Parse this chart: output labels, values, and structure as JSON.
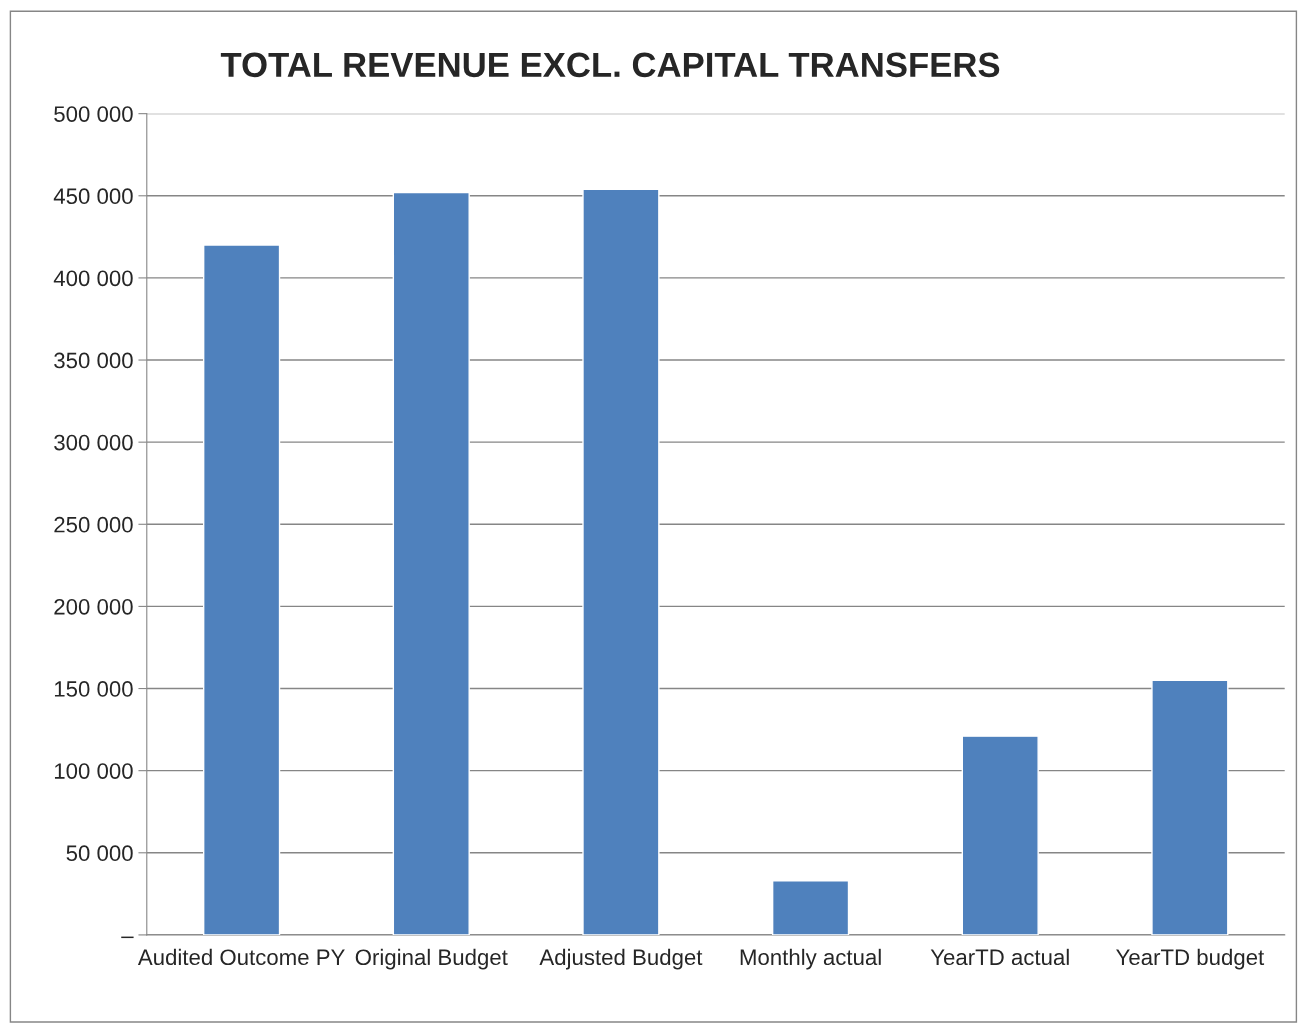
{
  "chart_data": {
    "type": "bar",
    "title": "TOTAL REVENUE EXCL. CAPITAL TRANSFERS",
    "categories": [
      "Audited Outcome PY",
      "Original Budget",
      "Adjusted Budget",
      "Monthly actual",
      "YearTD actual",
      "YearTD budget"
    ],
    "values": [
      420000,
      452000,
      454000,
      33000,
      121000,
      155000
    ],
    "color": "#4f81bd",
    "ylim": [
      0,
      500000
    ],
    "yticks": [
      {
        "value": 0,
        "label": "–"
      },
      {
        "value": 50000,
        "label": "50 000"
      },
      {
        "value": 100000,
        "label": "100 000"
      },
      {
        "value": 150000,
        "label": "150 000"
      },
      {
        "value": 200000,
        "label": "200 000"
      },
      {
        "value": 250000,
        "label": "250 000"
      },
      {
        "value": 300000,
        "label": "300 000"
      },
      {
        "value": 350000,
        "label": "350 000"
      },
      {
        "value": 400000,
        "label": "400 000"
      },
      {
        "value": 450000,
        "label": "450 000"
      },
      {
        "value": 500000,
        "label": "500 000"
      }
    ],
    "grid": "y"
  }
}
